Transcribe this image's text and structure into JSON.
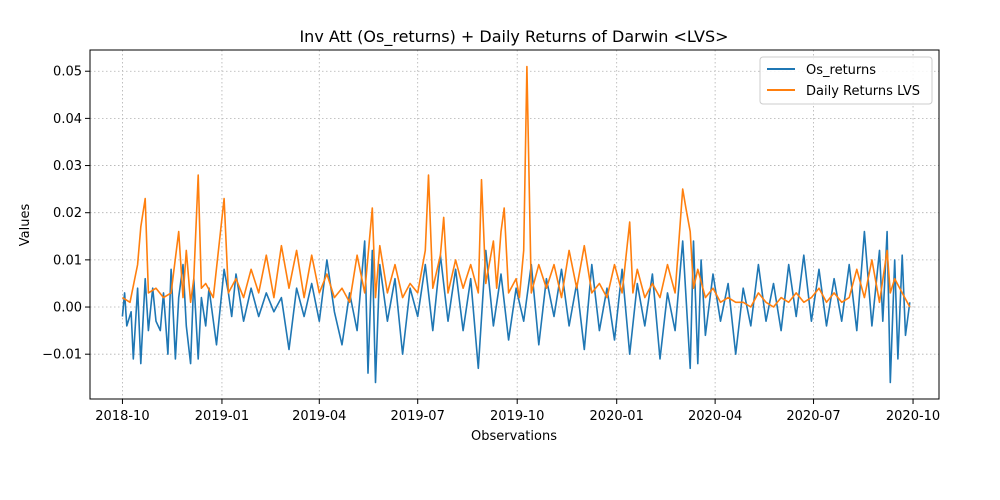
{
  "chart_data": {
    "type": "line",
    "title": "Inv Att (Os_returns) + Daily Returns of Darwin <LVS>",
    "xlabel": "Observations",
    "ylabel": "Values",
    "x_range": [
      "2018-09-01",
      "2020-10-25"
    ],
    "ylim": [
      -0.0195,
      0.0545
    ],
    "grid": true,
    "legend_position": "top-right",
    "x_ticks": [
      "2018-10",
      "2019-01",
      "2019-04",
      "2019-07",
      "2019-10",
      "2020-01",
      "2020-04",
      "2020-07",
      "2020-10"
    ],
    "y_ticks": [
      -0.01,
      0.0,
      0.01,
      0.02,
      0.03,
      0.04,
      0.05
    ],
    "y_tick_labels": [
      "−0.01",
      "0.00",
      "0.01",
      "0.02",
      "0.03",
      "0.04",
      "0.05"
    ],
    "series": [
      {
        "name": "Os_returns",
        "color": "#1f77b4",
        "points": [
          [
            "2018-10-01",
            -0.002
          ],
          [
            "2018-10-03",
            0.003
          ],
          [
            "2018-10-05",
            -0.004
          ],
          [
            "2018-10-09",
            -0.001
          ],
          [
            "2018-10-11",
            -0.011
          ],
          [
            "2018-10-15",
            0.004
          ],
          [
            "2018-10-18",
            -0.012
          ],
          [
            "2018-10-22",
            0.006
          ],
          [
            "2018-10-25",
            -0.005
          ],
          [
            "2018-10-29",
            0.004
          ],
          [
            "2018-11-01",
            -0.003
          ],
          [
            "2018-11-05",
            -0.005
          ],
          [
            "2018-11-08",
            0.003
          ],
          [
            "2018-11-12",
            -0.01
          ],
          [
            "2018-11-15",
            0.008
          ],
          [
            "2018-11-19",
            -0.011
          ],
          [
            "2018-11-22",
            0.002
          ],
          [
            "2018-11-26",
            0.009
          ],
          [
            "2018-11-29",
            -0.004
          ],
          [
            "2018-12-03",
            -0.012
          ],
          [
            "2018-12-06",
            0.006
          ],
          [
            "2018-12-10",
            -0.011
          ],
          [
            "2018-12-13",
            0.002
          ],
          [
            "2018-12-17",
            -0.004
          ],
          [
            "2018-12-20",
            0.004
          ],
          [
            "2018-12-27",
            -0.008
          ],
          [
            "2019-01-03",
            0.008
          ],
          [
            "2019-01-07",
            0.003
          ],
          [
            "2019-01-10",
            -0.002
          ],
          [
            "2019-01-14",
            0.007
          ],
          [
            "2019-01-21",
            -0.003
          ],
          [
            "2019-01-28",
            0.004
          ],
          [
            "2019-02-04",
            -0.002
          ],
          [
            "2019-02-11",
            0.003
          ],
          [
            "2019-02-18",
            -0.001
          ],
          [
            "2019-02-25",
            0.002
          ],
          [
            "2019-03-04",
            -0.009
          ],
          [
            "2019-03-11",
            0.004
          ],
          [
            "2019-03-18",
            -0.002
          ],
          [
            "2019-03-25",
            0.005
          ],
          [
            "2019-04-01",
            -0.003
          ],
          [
            "2019-04-08",
            0.01
          ],
          [
            "2019-04-15",
            -0.001
          ],
          [
            "2019-04-22",
            -0.008
          ],
          [
            "2019-04-29",
            0.003
          ],
          [
            "2019-05-06",
            -0.005
          ],
          [
            "2019-05-13",
            0.014
          ],
          [
            "2019-05-16",
            -0.014
          ],
          [
            "2019-05-20",
            0.012
          ],
          [
            "2019-05-23",
            -0.016
          ],
          [
            "2019-05-27",
            0.009
          ],
          [
            "2019-06-03",
            -0.003
          ],
          [
            "2019-06-10",
            0.006
          ],
          [
            "2019-06-17",
            -0.01
          ],
          [
            "2019-06-24",
            0.004
          ],
          [
            "2019-07-01",
            -0.002
          ],
          [
            "2019-07-08",
            0.009
          ],
          [
            "2019-07-15",
            -0.005
          ],
          [
            "2019-07-22",
            0.011
          ],
          [
            "2019-07-29",
            -0.003
          ],
          [
            "2019-08-05",
            0.008
          ],
          [
            "2019-08-12",
            -0.005
          ],
          [
            "2019-08-19",
            0.006
          ],
          [
            "2019-08-26",
            -0.013
          ],
          [
            "2019-09-02",
            0.012
          ],
          [
            "2019-09-09",
            -0.004
          ],
          [
            "2019-09-16",
            0.007
          ],
          [
            "2019-09-23",
            -0.007
          ],
          [
            "2019-09-30",
            0.004
          ],
          [
            "2019-10-07",
            -0.003
          ],
          [
            "2019-10-14",
            0.009
          ],
          [
            "2019-10-21",
            -0.008
          ],
          [
            "2019-10-28",
            0.006
          ],
          [
            "2019-11-04",
            -0.002
          ],
          [
            "2019-11-11",
            0.008
          ],
          [
            "2019-11-18",
            -0.004
          ],
          [
            "2019-11-25",
            0.005
          ],
          [
            "2019-12-02",
            -0.009
          ],
          [
            "2019-12-09",
            0.009
          ],
          [
            "2019-12-16",
            -0.005
          ],
          [
            "2019-12-23",
            0.004
          ],
          [
            "2019-12-30",
            -0.007
          ],
          [
            "2020-01-06",
            0.008
          ],
          [
            "2020-01-13",
            -0.01
          ],
          [
            "2020-01-20",
            0.005
          ],
          [
            "2020-01-27",
            -0.004
          ],
          [
            "2020-02-03",
            0.007
          ],
          [
            "2020-02-10",
            -0.011
          ],
          [
            "2020-02-17",
            0.003
          ],
          [
            "2020-02-24",
            -0.005
          ],
          [
            "2020-03-02",
            0.014
          ],
          [
            "2020-03-09",
            -0.013
          ],
          [
            "2020-03-12",
            0.014
          ],
          [
            "2020-03-16",
            -0.012
          ],
          [
            "2020-03-19",
            0.01
          ],
          [
            "2020-03-23",
            -0.006
          ],
          [
            "2020-03-30",
            0.007
          ],
          [
            "2020-04-06",
            -0.003
          ],
          [
            "2020-04-13",
            0.005
          ],
          [
            "2020-04-20",
            -0.01
          ],
          [
            "2020-04-27",
            0.004
          ],
          [
            "2020-05-04",
            -0.004
          ],
          [
            "2020-05-11",
            0.009
          ],
          [
            "2020-05-18",
            -0.003
          ],
          [
            "2020-05-25",
            0.005
          ],
          [
            "2020-06-01",
            -0.005
          ],
          [
            "2020-06-08",
            0.009
          ],
          [
            "2020-06-15",
            -0.002
          ],
          [
            "2020-06-22",
            0.011
          ],
          [
            "2020-06-29",
            -0.003
          ],
          [
            "2020-07-06",
            0.008
          ],
          [
            "2020-07-13",
            -0.004
          ],
          [
            "2020-07-20",
            0.006
          ],
          [
            "2020-07-27",
            -0.003
          ],
          [
            "2020-08-03",
            0.009
          ],
          [
            "2020-08-10",
            -0.005
          ],
          [
            "2020-08-17",
            0.016
          ],
          [
            "2020-08-24",
            -0.004
          ],
          [
            "2020-08-31",
            0.012
          ],
          [
            "2020-09-03",
            -0.003
          ],
          [
            "2020-09-07",
            0.016
          ],
          [
            "2020-09-10",
            -0.016
          ],
          [
            "2020-09-14",
            0.01
          ],
          [
            "2020-09-17",
            -0.011
          ],
          [
            "2020-09-21",
            0.011
          ],
          [
            "2020-09-24",
            -0.006
          ],
          [
            "2020-09-28",
            0.001
          ]
        ]
      },
      {
        "name": "Daily Returns LVS",
        "color": "#ff7f0e",
        "points": [
          [
            "2018-10-01",
            0.002
          ],
          [
            "2018-10-08",
            0.001
          ],
          [
            "2018-10-15",
            0.009
          ],
          [
            "2018-10-18",
            0.017
          ],
          [
            "2018-10-22",
            0.023
          ],
          [
            "2018-10-25",
            0.003
          ],
          [
            "2018-11-01",
            0.004
          ],
          [
            "2018-11-08",
            0.002
          ],
          [
            "2018-11-15",
            0.003
          ],
          [
            "2018-11-22",
            0.016
          ],
          [
            "2018-11-26",
            0.002
          ],
          [
            "2018-11-29",
            0.012
          ],
          [
            "2018-12-03",
            0.001
          ],
          [
            "2018-12-06",
            0.006
          ],
          [
            "2018-12-10",
            0.028
          ],
          [
            "2018-12-13",
            0.004
          ],
          [
            "2018-12-17",
            0.005
          ],
          [
            "2018-12-24",
            0.002
          ],
          [
            "2019-01-03",
            0.023
          ],
          [
            "2019-01-07",
            0.003
          ],
          [
            "2019-01-14",
            0.006
          ],
          [
            "2019-01-21",
            0.002
          ],
          [
            "2019-01-28",
            0.008
          ],
          [
            "2019-02-04",
            0.003
          ],
          [
            "2019-02-11",
            0.011
          ],
          [
            "2019-02-18",
            0.002
          ],
          [
            "2019-02-25",
            0.013
          ],
          [
            "2019-03-04",
            0.004
          ],
          [
            "2019-03-11",
            0.012
          ],
          [
            "2019-03-18",
            0.002
          ],
          [
            "2019-03-25",
            0.011
          ],
          [
            "2019-04-01",
            0.003
          ],
          [
            "2019-04-08",
            0.007
          ],
          [
            "2019-04-15",
            0.002
          ],
          [
            "2019-04-22",
            0.004
          ],
          [
            "2019-04-29",
            0.001
          ],
          [
            "2019-05-06",
            0.011
          ],
          [
            "2019-05-13",
            0.003
          ],
          [
            "2019-05-20",
            0.021
          ],
          [
            "2019-05-23",
            0.002
          ],
          [
            "2019-05-27",
            0.013
          ],
          [
            "2019-06-03",
            0.003
          ],
          [
            "2019-06-10",
            0.009
          ],
          [
            "2019-06-17",
            0.002
          ],
          [
            "2019-06-24",
            0.005
          ],
          [
            "2019-07-01",
            0.003
          ],
          [
            "2019-07-08",
            0.012
          ],
          [
            "2019-07-11",
            0.028
          ],
          [
            "2019-07-15",
            0.004
          ],
          [
            "2019-07-22",
            0.011
          ],
          [
            "2019-07-25",
            0.019
          ],
          [
            "2019-07-29",
            0.003
          ],
          [
            "2019-08-05",
            0.01
          ],
          [
            "2019-08-12",
            0.004
          ],
          [
            "2019-08-19",
            0.009
          ],
          [
            "2019-08-26",
            0.003
          ],
          [
            "2019-08-29",
            0.027
          ],
          [
            "2019-09-02",
            0.005
          ],
          [
            "2019-09-09",
            0.014
          ],
          [
            "2019-09-12",
            0.004
          ],
          [
            "2019-09-16",
            0.016
          ],
          [
            "2019-09-19",
            0.021
          ],
          [
            "2019-09-23",
            0.003
          ],
          [
            "2019-09-30",
            0.006
          ],
          [
            "2019-10-03",
            0.002
          ],
          [
            "2019-10-07",
            0.012
          ],
          [
            "2019-10-10",
            0.051
          ],
          [
            "2019-10-14",
            0.003
          ],
          [
            "2019-10-21",
            0.009
          ],
          [
            "2019-10-28",
            0.004
          ],
          [
            "2019-11-04",
            0.009
          ],
          [
            "2019-11-11",
            0.002
          ],
          [
            "2019-11-18",
            0.012
          ],
          [
            "2019-11-25",
            0.004
          ],
          [
            "2019-12-02",
            0.013
          ],
          [
            "2019-12-09",
            0.003
          ],
          [
            "2019-12-16",
            0.005
          ],
          [
            "2019-12-23",
            0.002
          ],
          [
            "2019-12-30",
            0.009
          ],
          [
            "2020-01-06",
            0.003
          ],
          [
            "2020-01-13",
            0.018
          ],
          [
            "2020-01-16",
            0.003
          ],
          [
            "2020-01-20",
            0.008
          ],
          [
            "2020-01-27",
            0.002
          ],
          [
            "2020-02-03",
            0.005
          ],
          [
            "2020-02-10",
            0.002
          ],
          [
            "2020-02-17",
            0.009
          ],
          [
            "2020-02-24",
            0.003
          ],
          [
            "2020-03-02",
            0.025
          ],
          [
            "2020-03-05",
            0.021
          ],
          [
            "2020-03-09",
            0.016
          ],
          [
            "2020-03-12",
            0.004
          ],
          [
            "2020-03-16",
            0.008
          ],
          [
            "2020-03-23",
            0.002
          ],
          [
            "2020-03-30",
            0.004
          ],
          [
            "2020-04-06",
            0.001
          ],
          [
            "2020-04-13",
            0.002
          ],
          [
            "2020-04-20",
            0.001
          ],
          [
            "2020-04-27",
            0.001
          ],
          [
            "2020-05-04",
            0.0
          ],
          [
            "2020-05-11",
            0.003
          ],
          [
            "2020-05-18",
            0.001
          ],
          [
            "2020-05-25",
            0.0
          ],
          [
            "2020-06-01",
            0.002
          ],
          [
            "2020-06-08",
            0.001
          ],
          [
            "2020-06-15",
            0.003
          ],
          [
            "2020-06-22",
            0.001
          ],
          [
            "2020-06-29",
            0.002
          ],
          [
            "2020-07-06",
            0.004
          ],
          [
            "2020-07-13",
            0.001
          ],
          [
            "2020-07-20",
            0.003
          ],
          [
            "2020-07-27",
            0.001
          ],
          [
            "2020-08-03",
            0.002
          ],
          [
            "2020-08-10",
            0.008
          ],
          [
            "2020-08-17",
            0.002
          ],
          [
            "2020-08-24",
            0.01
          ],
          [
            "2020-08-31",
            0.001
          ],
          [
            "2020-09-07",
            0.012
          ],
          [
            "2020-09-10",
            0.003
          ],
          [
            "2020-09-14",
            0.006
          ],
          [
            "2020-09-21",
            0.003
          ],
          [
            "2020-09-28",
            0.0
          ]
        ]
      }
    ]
  }
}
